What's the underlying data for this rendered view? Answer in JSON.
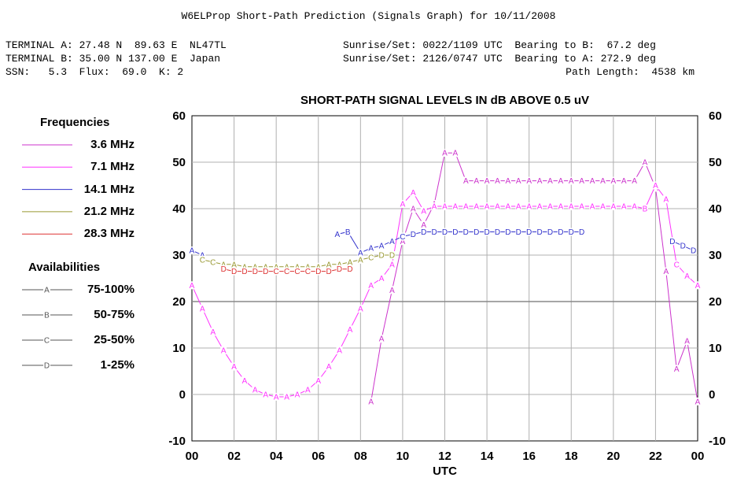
{
  "header": {
    "title": "W6ELProp Short-Path Prediction (Signals Graph) for 10/11/2008",
    "terminal_a": "TERMINAL A: 27.48 N  89.63 E  NL47TL",
    "terminal_b": "TERMINAL B: 35.00 N 137.00 E  Japan",
    "ssn_line": "SSN:   5.3  Flux:  69.0  K: 2",
    "sun_a": "Sunrise/Set: 0022/1109 UTC  Bearing to B:  67.2 deg",
    "sun_b": "Sunrise/Set: 2126/0747 UTC  Bearing to A: 272.9 deg",
    "path_length": "Path Length:  4538 km"
  },
  "legend": {
    "frequencies_title": "Frequencies",
    "frequencies": [
      {
        "label": "3.6 MHz",
        "color": "#cc33cc"
      },
      {
        "label": "7.1 MHz",
        "color": "#ff33ff"
      },
      {
        "label": "14.1 MHz",
        "color": "#3333cc"
      },
      {
        "label": "21.2 MHz",
        "color": "#999933"
      },
      {
        "label": "28.3 MHz",
        "color": "#dd3333"
      }
    ],
    "availabilities_title": "Availabilities",
    "availabilities": [
      {
        "letter": "A",
        "label": "75-100%"
      },
      {
        "letter": "B",
        "label": "50-75%"
      },
      {
        "letter": "C",
        "label": "25-50%"
      },
      {
        "letter": "D",
        "label": "1-25%"
      }
    ]
  },
  "chart_data": {
    "type": "line",
    "title": "SHORT-PATH SIGNAL LEVELS IN dB ABOVE 0.5 uV",
    "xlabel": "UTC",
    "ylabel": "",
    "xlim": [
      0,
      24
    ],
    "ylim": [
      -10,
      60
    ],
    "x_ticks": [
      "00",
      "02",
      "04",
      "06",
      "08",
      "10",
      "12",
      "14",
      "16",
      "18",
      "20",
      "22",
      "00"
    ],
    "y_ticks": [
      -10,
      0,
      10,
      20,
      30,
      40,
      50,
      60
    ],
    "grid": true,
    "reference_line": 20,
    "series": [
      {
        "name": "3.6 MHz",
        "color": "#cc33cc",
        "points": [
          [
            8.5,
            -1.5,
            "A"
          ],
          [
            9,
            12,
            "A"
          ],
          [
            9.5,
            22.5,
            "A"
          ],
          [
            10,
            33,
            "A"
          ],
          [
            10.5,
            40,
            "A"
          ],
          [
            11,
            36.5,
            "A"
          ],
          [
            11.5,
            41,
            "A"
          ],
          [
            12,
            52,
            "A"
          ],
          [
            12.5,
            52,
            "A"
          ],
          [
            13,
            46,
            "A"
          ],
          [
            13.5,
            46,
            "A"
          ],
          [
            14,
            46,
            "A"
          ],
          [
            14.5,
            46,
            "A"
          ],
          [
            15,
            46,
            "A"
          ],
          [
            15.5,
            46,
            "A"
          ],
          [
            16,
            46,
            "A"
          ],
          [
            16.5,
            46,
            "A"
          ],
          [
            17,
            46,
            "A"
          ],
          [
            17.5,
            46,
            "A"
          ],
          [
            18,
            46,
            "A"
          ],
          [
            18.5,
            46,
            "A"
          ],
          [
            19,
            46,
            "A"
          ],
          [
            19.5,
            46,
            "A"
          ],
          [
            20,
            46,
            "A"
          ],
          [
            20.5,
            46,
            "A"
          ],
          [
            21,
            46,
            "A"
          ],
          [
            21.5,
            50,
            "A"
          ],
          [
            22,
            44.5,
            "A"
          ],
          [
            22.5,
            26.5,
            "A"
          ],
          [
            23,
            5.5,
            "A"
          ],
          [
            23.5,
            11.5,
            "A"
          ],
          [
            24,
            -1.5,
            "A"
          ]
        ]
      },
      {
        "name": "7.1 MHz",
        "color": "#ff33ff",
        "points": [
          [
            0,
            23.5,
            "A"
          ],
          [
            0.5,
            18.5,
            "A"
          ],
          [
            1,
            13.5,
            "A"
          ],
          [
            1.5,
            9.5,
            "A"
          ],
          [
            2,
            6,
            "A"
          ],
          [
            2.5,
            3,
            "A"
          ],
          [
            3,
            1,
            "A"
          ],
          [
            3.5,
            0,
            "A"
          ],
          [
            4,
            -0.5,
            "A"
          ],
          [
            4.5,
            -0.5,
            "A"
          ],
          [
            5,
            0,
            "A"
          ],
          [
            5.5,
            1,
            "A"
          ],
          [
            6,
            3,
            "A"
          ],
          [
            6.5,
            6,
            "A"
          ],
          [
            7,
            9.5,
            "A"
          ],
          [
            7.5,
            14,
            "A"
          ],
          [
            8,
            18.5,
            "A"
          ],
          [
            8.5,
            23.5,
            "A"
          ],
          [
            9,
            25,
            "A"
          ],
          [
            9.5,
            28,
            "A"
          ],
          [
            10,
            41,
            "A"
          ],
          [
            10.5,
            43.5,
            "A"
          ],
          [
            11,
            39.5,
            "A"
          ],
          [
            11.5,
            40.5,
            "A"
          ],
          [
            12,
            40.5,
            "A"
          ],
          [
            12.5,
            40.5,
            "A"
          ],
          [
            13,
            40.5,
            "A"
          ],
          [
            13.5,
            40.5,
            "A"
          ],
          [
            14,
            40.5,
            "A"
          ],
          [
            14.5,
            40.5,
            "A"
          ],
          [
            15,
            40.5,
            "A"
          ],
          [
            15.5,
            40.5,
            "A"
          ],
          [
            16,
            40.5,
            "A"
          ],
          [
            16.5,
            40.5,
            "A"
          ],
          [
            17,
            40.5,
            "A"
          ],
          [
            17.5,
            40.5,
            "A"
          ],
          [
            18,
            40.5,
            "A"
          ],
          [
            18.5,
            40.5,
            "A"
          ],
          [
            19,
            40.5,
            "A"
          ],
          [
            19.5,
            40.5,
            "A"
          ],
          [
            20,
            40.5,
            "A"
          ],
          [
            20.5,
            40.5,
            "A"
          ],
          [
            21,
            40.5,
            "A"
          ],
          [
            21.5,
            40,
            "B"
          ],
          [
            22,
            45,
            "A"
          ],
          [
            22.5,
            42,
            "A"
          ],
          [
            23,
            28,
            "C"
          ],
          [
            23.5,
            25.5,
            "A"
          ],
          [
            24,
            23.5,
            "A"
          ]
        ]
      },
      {
        "name": "14.1 MHz",
        "color": "#3333cc",
        "points": [
          [
            0,
            31,
            "A"
          ],
          [
            0.5,
            30,
            "A"
          ],
          [
            6.9,
            34.5,
            "A"
          ],
          [
            7.4,
            35,
            "B"
          ],
          [
            8,
            30.5,
            "A"
          ],
          [
            8.5,
            31.5,
            "A"
          ],
          [
            9,
            32,
            "A"
          ],
          [
            9.5,
            33,
            "A"
          ],
          [
            10,
            34,
            "C"
          ],
          [
            10.5,
            34.5,
            "D"
          ],
          [
            11,
            35,
            "D"
          ],
          [
            11.5,
            35,
            "D"
          ],
          [
            12,
            35,
            "D"
          ],
          [
            12.5,
            35,
            "D"
          ],
          [
            13,
            35,
            "D"
          ],
          [
            13.5,
            35,
            "D"
          ],
          [
            14,
            35,
            "D"
          ],
          [
            14.5,
            35,
            "D"
          ],
          [
            15,
            35,
            "D"
          ],
          [
            15.5,
            35,
            "D"
          ],
          [
            16,
            35,
            "D"
          ],
          [
            16.5,
            35,
            "D"
          ],
          [
            17,
            35,
            "D"
          ],
          [
            17.5,
            35,
            "D"
          ],
          [
            18,
            35,
            "D"
          ],
          [
            18.5,
            35,
            "D"
          ],
          [
            22.8,
            33,
            "D"
          ],
          [
            23.3,
            32,
            "D"
          ],
          [
            23.8,
            31,
            "D"
          ]
        ]
      },
      {
        "name": "21.2 MHz",
        "color": "#999933",
        "points": [
          [
            0.5,
            29,
            "C"
          ],
          [
            1,
            28.5,
            "C"
          ],
          [
            1.5,
            28,
            "A"
          ],
          [
            2,
            28,
            "A"
          ],
          [
            2.5,
            27.5,
            "A"
          ],
          [
            3,
            27.5,
            "A"
          ],
          [
            3.5,
            27.5,
            "A"
          ],
          [
            4,
            27.5,
            "A"
          ],
          [
            4.5,
            27.5,
            "A"
          ],
          [
            5,
            27.5,
            "A"
          ],
          [
            5.5,
            27.5,
            "A"
          ],
          [
            6,
            27.5,
            "A"
          ],
          [
            6.5,
            28,
            "A"
          ],
          [
            7,
            28,
            "A"
          ],
          [
            7.5,
            28.5,
            "A"
          ],
          [
            8,
            29,
            "A"
          ],
          [
            8.5,
            29.5,
            "C"
          ],
          [
            9,
            30,
            "D"
          ],
          [
            9.5,
            30,
            "D"
          ]
        ]
      },
      {
        "name": "28.3 MHz",
        "color": "#dd3333",
        "points": [
          [
            1.5,
            27,
            "D"
          ],
          [
            2,
            26.5,
            "D"
          ],
          [
            2.5,
            26.5,
            "D"
          ],
          [
            3,
            26.5,
            "D"
          ],
          [
            3.5,
            26.5,
            "D"
          ],
          [
            4,
            26.5,
            "C"
          ],
          [
            4.5,
            26.5,
            "C"
          ],
          [
            5,
            26.5,
            "C"
          ],
          [
            5.5,
            26.5,
            "C"
          ],
          [
            6,
            26.5,
            "D"
          ],
          [
            6.5,
            26.5,
            "D"
          ],
          [
            7,
            27,
            "D"
          ],
          [
            7.5,
            27,
            "D"
          ]
        ]
      }
    ]
  }
}
